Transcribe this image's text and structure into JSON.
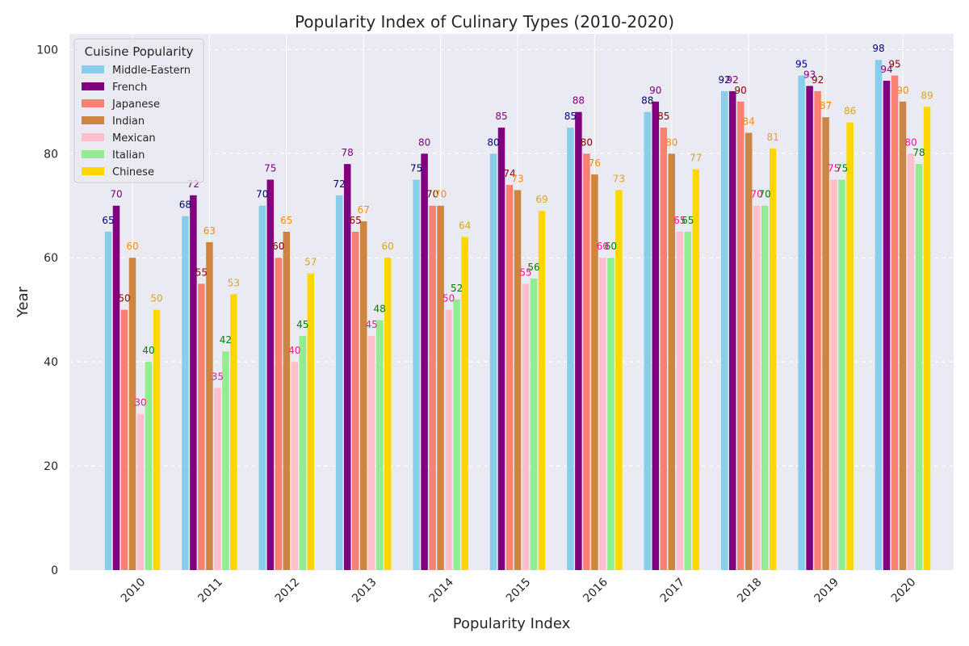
{
  "chart_data": {
    "type": "bar",
    "title": "Popularity Index of Culinary Types (2010-2020)",
    "xlabel": "Popularity Index",
    "ylabel": "Year",
    "ylim": [
      0,
      103
    ],
    "yticks": [
      0,
      20,
      40,
      60,
      80,
      100
    ],
    "grid": true,
    "legend": {
      "title": "Cuisine Popularity",
      "placement": "top-left"
    },
    "categories": [
      "2010",
      "2011",
      "2012",
      "2013",
      "2014",
      "2015",
      "2016",
      "2017",
      "2018",
      "2019",
      "2020"
    ],
    "series": [
      {
        "name": "Middle-Eastern",
        "color": "#87CEEB",
        "label_color": "#000080",
        "values": [
          65,
          68,
          70,
          72,
          75,
          80,
          85,
          88,
          92,
          95,
          98
        ]
      },
      {
        "name": "French",
        "color": "#800080",
        "label_color": "#800080",
        "values": [
          70,
          72,
          75,
          78,
          80,
          85,
          88,
          90,
          92,
          93,
          94
        ]
      },
      {
        "name": "Japanese",
        "color": "#FA8072",
        "label_color": "#8B0000",
        "values": [
          50,
          55,
          60,
          65,
          70,
          74,
          80,
          85,
          90,
          92,
          95
        ]
      },
      {
        "name": "Indian",
        "color": "#CD853F",
        "label_color": "#FF8C00",
        "values": [
          60,
          63,
          65,
          67,
          70,
          73,
          76,
          80,
          84,
          87,
          90
        ]
      },
      {
        "name": "Mexican",
        "color": "#FFC0CB",
        "label_color": "#FF1493",
        "values": [
          30,
          35,
          40,
          45,
          50,
          55,
          60,
          65,
          70,
          75,
          80
        ]
      },
      {
        "name": "Italian",
        "color": "#90EE90",
        "label_color": "#008000",
        "values": [
          40,
          42,
          45,
          48,
          52,
          56,
          60,
          65,
          70,
          75,
          78
        ]
      },
      {
        "name": "Chinese",
        "color": "#FFD700",
        "label_color": "#DAA520",
        "values": [
          50,
          53,
          57,
          60,
          64,
          69,
          73,
          77,
          81,
          86,
          89
        ]
      }
    ]
  }
}
